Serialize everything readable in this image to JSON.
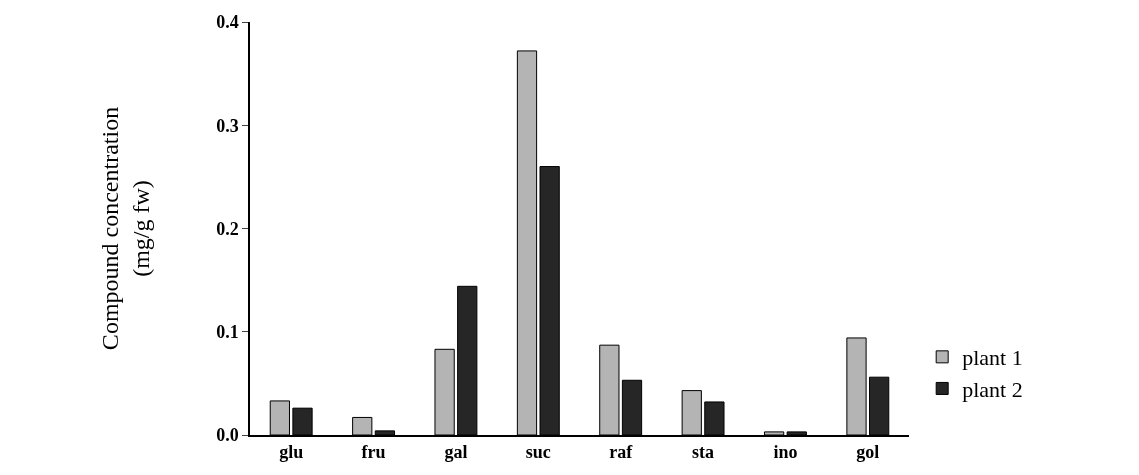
{
  "chart_data": {
    "type": "bar",
    "ylabel": "Compound concentration\n(mg/g fw)",
    "categories": [
      "glu",
      "fru",
      "gal",
      "suc",
      "raf",
      "sta",
      "ino",
      "gol"
    ],
    "series": [
      {
        "name": "plant 1",
        "color": "#b4b4b4",
        "values": [
          0.033,
          0.017,
          0.083,
          0.372,
          0.087,
          0.043,
          0.003,
          0.094
        ]
      },
      {
        "name": "plant 2",
        "color": "#262626",
        "values": [
          0.026,
          0.004,
          0.144,
          0.26,
          0.053,
          0.032,
          0.003,
          0.056
        ]
      }
    ],
    "ylim": [
      0,
      0.4
    ],
    "yticks": [
      {
        "value": 0,
        "label": "0.0"
      },
      {
        "value": 0.1,
        "label": "0.1"
      },
      {
        "value": 0.2,
        "label": "0.2"
      },
      {
        "value": 0.3,
        "label": "0.3"
      },
      {
        "value": 0.4,
        "label": "0.4"
      }
    ],
    "grid": false,
    "legend": "right"
  }
}
